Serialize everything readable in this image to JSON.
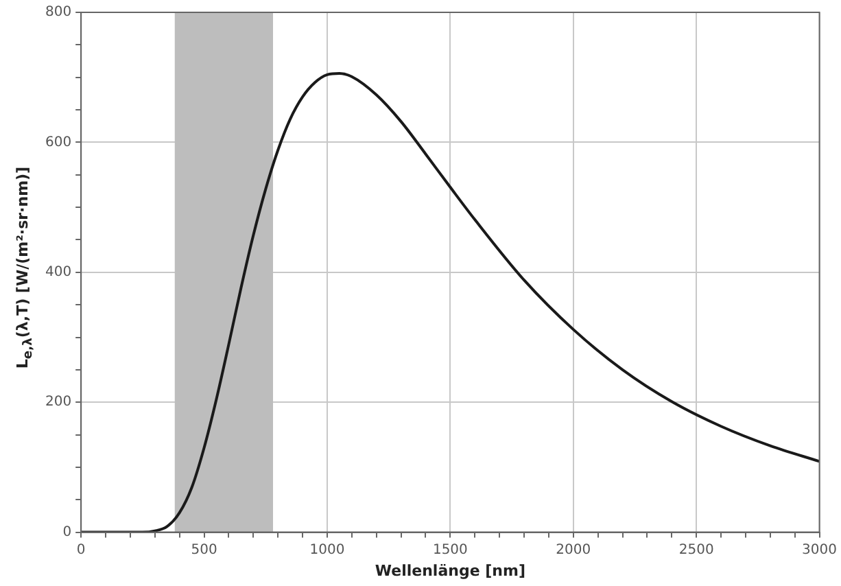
{
  "chart_data": {
    "type": "line",
    "xlabel": "Wellenlänge [nm]",
    "ylabel": "L$_{e,λ}$(λ,T) [W/(m²·sr·nm)]",
    "series": [
      {
        "color": "#1a1a1a",
        "x": [
          0,
          100,
          200,
          250,
          300,
          350,
          400,
          450,
          500,
          550,
          600,
          650,
          700,
          750,
          800,
          850,
          900,
          950,
          1000,
          1050,
          1100,
          1200,
          1300,
          1400,
          1500,
          1600,
          1800,
          2000,
          2200,
          2400,
          2600,
          2800,
          3000
        ],
        "values": [
          0,
          0,
          0,
          0,
          2,
          9,
          30,
          69,
          130,
          205,
          289,
          376,
          457,
          528,
          588,
          636,
          670,
          692,
          704,
          706,
          701,
          673,
          632,
          582,
          531,
          481,
          388,
          312,
          250,
          201,
          163,
          133,
          109
        ]
      }
    ],
    "xlim": [
      0,
      3000
    ],
    "xticks": [
      0,
      {
        "value": 100,
        "label": null
      },
      {
        "value": 200,
        "label": null
      },
      {
        "value": 300,
        "label": null
      },
      {
        "value": 400,
        "label": null
      },
      500,
      {
        "value": 600,
        "label": null
      },
      {
        "value": 700,
        "label": null
      },
      {
        "value": 800,
        "label": null
      },
      {
        "value": 900,
        "label": null
      },
      1000,
      {
        "value": 1100,
        "label": null
      },
      {
        "value": 1200,
        "label": null
      },
      {
        "value": 1300,
        "label": null
      },
      {
        "value": 1400,
        "label": null
      },
      1500,
      {
        "value": 1600,
        "label": null
      },
      {
        "value": 1700,
        "label": null
      },
      {
        "value": 1800,
        "label": null
      },
      {
        "value": 1900,
        "label": null
      },
      2000,
      {
        "value": 2100,
        "label": null
      },
      {
        "value": 2200,
        "label": null
      },
      {
        "value": 2300,
        "label": null
      },
      {
        "value": 2400,
        "label": null
      },
      2500,
      {
        "value": 2600,
        "label": null
      },
      {
        "value": 2700,
        "label": null
      },
      {
        "value": 2800,
        "label": null
      },
      {
        "value": 2900,
        "label": null
      },
      3000
    ],
    "ylim": [
      0,
      800
    ],
    "yticks": [
      0,
      {
        "value": 50,
        "label": null
      },
      {
        "value": 100,
        "label": null
      },
      {
        "value": 150,
        "label": null
      },
      200,
      {
        "value": 250,
        "label": null
      },
      {
        "value": 300,
        "label": null
      },
      {
        "value": 350,
        "label": null
      },
      400,
      {
        "value": 450,
        "label": null
      },
      {
        "value": 500,
        "label": null
      },
      {
        "value": 550,
        "label": null
      },
      600,
      {
        "value": 650,
        "label": null
      },
      {
        "value": 700,
        "label": null
      },
      {
        "value": 750,
        "label": null
      },
      800
    ],
    "bands": [
      {
        "axis": "x",
        "from": 380,
        "to": 780,
        "color": "#bdbdbd"
      }
    ],
    "grid": true,
    "marker": "none",
    "line_style": "solid"
  }
}
